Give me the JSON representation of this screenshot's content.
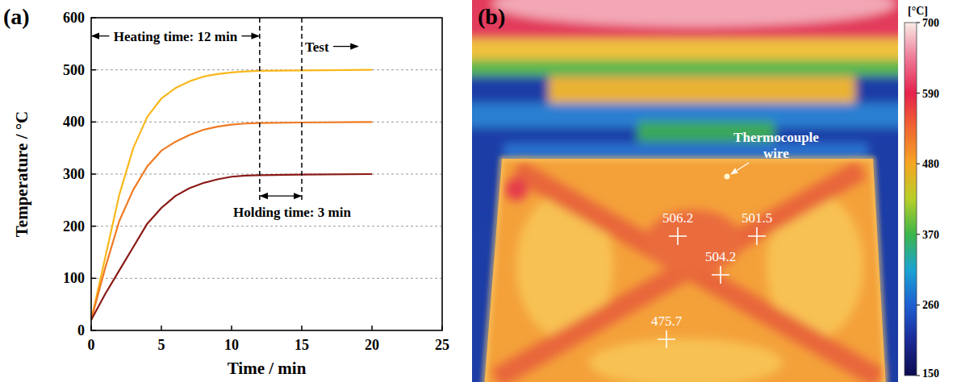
{
  "chart_data": [
    {
      "type": "line",
      "panel_label": "(a)",
      "x_label": "Time / min",
      "y_label": "Temperature / °C",
      "x": [
        0,
        1,
        2,
        3,
        4,
        5,
        6,
        7,
        8,
        9,
        10,
        11,
        12,
        15,
        20
      ],
      "series": [
        {
          "color": "#f9b81c",
          "values": [
            20,
            140,
            260,
            350,
            410,
            445,
            465,
            478,
            487,
            492,
            495,
            497,
            498,
            499,
            500
          ]
        },
        {
          "color": "#f07a22",
          "values": [
            20,
            120,
            210,
            270,
            315,
            345,
            362,
            375,
            385,
            391,
            395,
            397,
            398,
            399,
            400
          ]
        },
        {
          "color": "#8a1a16",
          "values": [
            20,
            70,
            115,
            160,
            205,
            235,
            258,
            273,
            283,
            290,
            295,
            297,
            298,
            299,
            300
          ]
        }
      ],
      "xlim": [
        0,
        25
      ],
      "xticks": [
        0,
        5,
        10,
        15,
        20,
        25
      ],
      "ylim": [
        0,
        600
      ],
      "yticks": [
        0,
        100,
        200,
        300,
        400,
        500,
        600
      ],
      "grid": true,
      "line_style": "solid",
      "vlines": [
        12,
        15
      ],
      "annotations": [
        {
          "text": "Heating time: 12 min",
          "x": [
            0,
            12
          ],
          "y": 565
        },
        {
          "text": "Holding time: 3 min",
          "x": [
            12,
            15
          ],
          "y": 258
        },
        {
          "text": "Test",
          "x": [
            15,
            19
          ],
          "y": 545
        }
      ]
    },
    {
      "type": "image",
      "panel_label": "(b)",
      "colorbar": {
        "label": "[°C]",
        "range": [
          150,
          700
        ],
        "ticks": [
          700,
          590,
          480,
          370,
          260,
          150
        ]
      },
      "measurements": [
        506.2,
        501.5,
        504.2,
        475.7
      ],
      "annotations": [
        {
          "text": "Thermocouple wire"
        }
      ]
    }
  ]
}
